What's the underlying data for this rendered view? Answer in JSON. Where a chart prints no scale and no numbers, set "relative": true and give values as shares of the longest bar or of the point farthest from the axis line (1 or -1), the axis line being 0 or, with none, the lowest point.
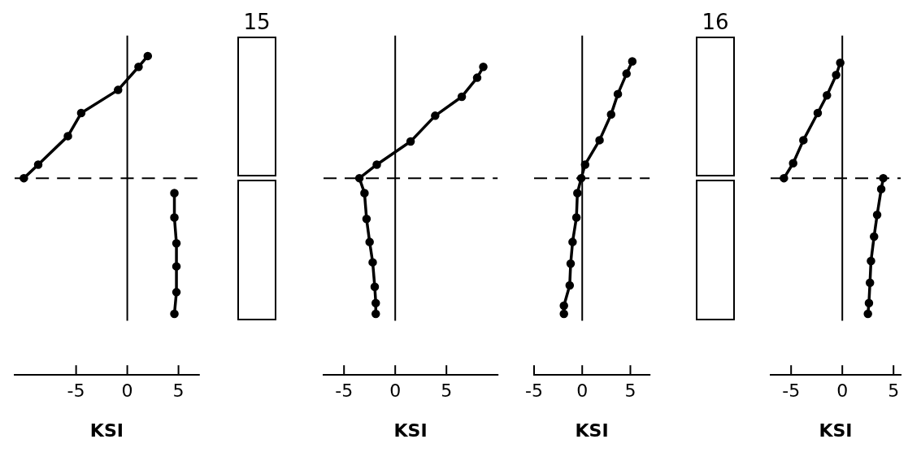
{
  "chart_data": [
    {
      "type": "line",
      "xlabel": "KSI",
      "relative": true,
      "xlim": [
        -11,
        7
      ],
      "xticks": [
        -5,
        0,
        5
      ],
      "marker": "circle",
      "ref_lines": [
        {
          "axis": "x",
          "value": 0
        },
        {
          "axis": "y",
          "value": 0,
          "line_style": "dashed"
        }
      ],
      "series": [
        {
          "color": "#000000",
          "x": [
            -10.1,
            -8.7,
            -5.8,
            -4.5,
            -0.9,
            1.1,
            2.0
          ],
          "values": [
            0,
            0.1,
            0.31,
            0.48,
            0.65,
            0.82,
            0.9
          ]
        },
        {
          "color": "#000000",
          "x": [
            4.6,
            4.6,
            4.8,
            4.8,
            4.8,
            4.6
          ],
          "values": [
            -0.11,
            -0.29,
            -0.48,
            -0.65,
            -0.84,
            -1
          ]
        }
      ]
    },
    {
      "type": "other",
      "title": "15"
    },
    {
      "type": "line",
      "xlabel": "KSI",
      "relative": true,
      "xlim": [
        -7,
        10
      ],
      "xticks": [
        -5,
        0,
        5
      ],
      "marker": "circle",
      "ref_lines": [
        {
          "axis": "x",
          "value": 0
        },
        {
          "axis": "y",
          "value": 0,
          "line_style": "dashed"
        }
      ],
      "series": [
        {
          "color": "#000000",
          "x": [
            8.6,
            8.0,
            6.5,
            3.9,
            1.5,
            -1.8,
            -3.5,
            -3.0,
            -2.8,
            -2.5,
            -2.2,
            -2.0,
            -1.9,
            -1.9
          ],
          "values": [
            0.82,
            0.74,
            0.6,
            0.46,
            0.27,
            0.1,
            0,
            -0.11,
            -0.3,
            -0.47,
            -0.62,
            -0.8,
            -0.92,
            -1
          ]
        }
      ]
    },
    {
      "type": "line",
      "xlabel": "KSI",
      "relative": true,
      "xlim": [
        -5,
        7
      ],
      "xticks": [
        -5,
        0,
        5
      ],
      "marker": "circle",
      "ref_lines": [
        {
          "axis": "x",
          "value": 0
        },
        {
          "axis": "y",
          "value": 0,
          "line_style": "dashed"
        }
      ],
      "series": [
        {
          "color": "#000000",
          "x": [
            5.2,
            4.6,
            3.7,
            3.0,
            1.8,
            0.3,
            -0.1,
            -0.5,
            -0.6,
            -1.0,
            -1.2,
            -1.3,
            -1.9,
            -1.9
          ],
          "values": [
            0.86,
            0.77,
            0.62,
            0.47,
            0.28,
            0.1,
            0,
            -0.11,
            -0.29,
            -0.47,
            -0.63,
            -0.79,
            -0.94,
            -1
          ]
        }
      ]
    },
    {
      "type": "other",
      "title": "16"
    },
    {
      "type": "line",
      "xlabel": "KSI",
      "relative": true,
      "xlim": [
        -7,
        5.7
      ],
      "xticks": [
        -5,
        0,
        5
      ],
      "marker": "circle",
      "ref_lines": [
        {
          "axis": "x",
          "value": 0
        },
        {
          "axis": "y",
          "value": 0,
          "line_style": "dashed"
        }
      ],
      "series": [
        {
          "color": "#000000",
          "x": [
            -5.7,
            -4.8,
            -3.8,
            -2.4,
            -1.5,
            -0.6,
            -0.2
          ],
          "values": [
            0,
            0.11,
            0.28,
            0.48,
            0.61,
            0.76,
            0.85
          ]
        },
        {
          "color": "#000000",
          "x": [
            4.0,
            3.8,
            3.4,
            3.1,
            2.8,
            2.7,
            2.6,
            2.5
          ],
          "values": [
            0,
            -0.08,
            -0.27,
            -0.43,
            -0.61,
            -0.77,
            -0.92,
            -1
          ]
        }
      ]
    }
  ]
}
